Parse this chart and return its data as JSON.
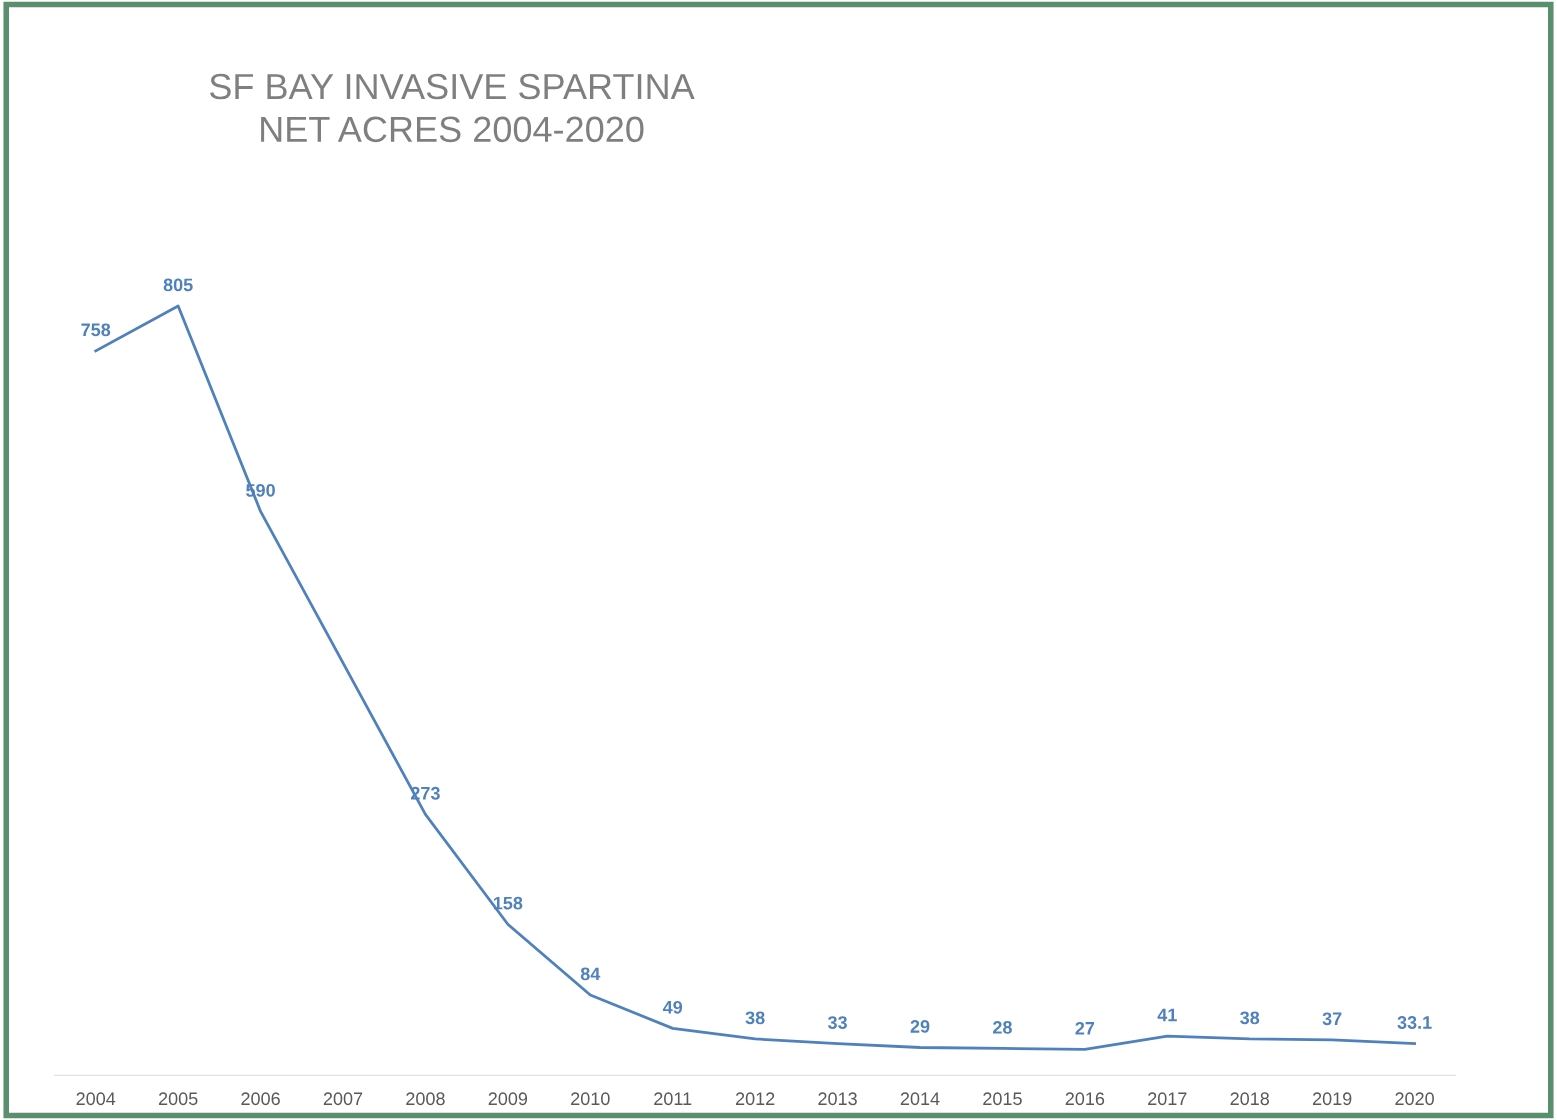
{
  "chart_data": {
    "type": "line",
    "title": "SF BAY INVASIVE SPARTINA\nNET ACRES 2004-2020",
    "categories": [
      "2004",
      "2005",
      "2006",
      "2007",
      "2008",
      "2009",
      "2010",
      "2011",
      "2012",
      "2013",
      "2014",
      "2015",
      "2016",
      "2017",
      "2018",
      "2019",
      "2020"
    ],
    "series": [
      {
        "color": "#4f81bd",
        "values": [
          758,
          805,
          590,
          null,
          273,
          158,
          84,
          49,
          38,
          33,
          29,
          28,
          27,
          41,
          38,
          37,
          33.1
        ]
      }
    ],
    "data_labels": true,
    "grid": false,
    "legend": false,
    "tick_labels": "x",
    "line_style": "solid"
  }
}
